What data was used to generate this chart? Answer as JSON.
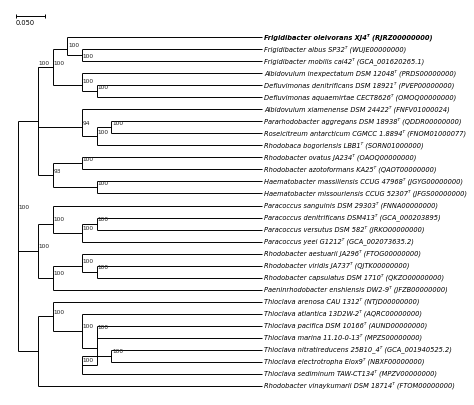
{
  "scale_bar_label": "0.050",
  "taxa": [
    {
      "label": "Frigidibacter oleivorans XJ4ᵀ (RJRZ00000000)",
      "bold": true
    },
    {
      "label": "Frigidibacter albus SP32ᵀ (WUJE00000000)",
      "bold": false
    },
    {
      "label": "Frigidibacter mobilis cai42ᵀ (GCA_001620265.1)",
      "bold": false
    },
    {
      "label": "Albidovulum inexpectatum DSM 12048ᵀ (PRDS00000000)",
      "bold": false
    },
    {
      "label": "Defluvimonas denitrificans DSM 18921ᵀ (PVEP00000000)",
      "bold": false
    },
    {
      "label": "Defluvimonas aquaemirtae CECT8626ᵀ (OMOQ00000000)",
      "bold": false
    },
    {
      "label": "Albidovulum xiamenense DSM 24422ᵀ (FNFV01000024)",
      "bold": false
    },
    {
      "label": "Pararhodobacter aggregans DSM 18938ᵀ (QDDR00000000)",
      "bold": false
    },
    {
      "label": "Roseicitreum antarcticum CGMCC 1.8894ᵀ (FNOM01000077)",
      "bold": false
    },
    {
      "label": "Rhodobaca bogoriensis LBB1ᵀ (SORN01000000)",
      "bold": false
    },
    {
      "label": "Rhodobacter ovatus JA234ᵀ (OAOQ00000000)",
      "bold": false
    },
    {
      "label": "Rhodobacter azotoformans KA25ᵀ (QAOT00000000)",
      "bold": false
    },
    {
      "label": "Haematobacter massiliensis CCUG 47968ᵀ (JGYG00000000)",
      "bold": false
    },
    {
      "label": "Haematobacter missouriensis CCUG 52307ᵀ (JFGS00000000)",
      "bold": false
    },
    {
      "label": "Paracoccus sanguinis DSM 29303ᵀ (FNNA00000000)",
      "bold": false
    },
    {
      "label": "Paracoccus denitrificans DSM413ᵀ (GCA_000203895)",
      "bold": false
    },
    {
      "label": "Paracoccus versutus DSM 582ᵀ (JRKO00000000)",
      "bold": false
    },
    {
      "label": "Paracoccus yeei G1212ᵀ (GCA_002073635.2)",
      "bold": false
    },
    {
      "label": "Rhodobacter aestuarii JA296ᵀ (FTOG00000000)",
      "bold": false
    },
    {
      "label": "Rhodobacter viridis JA737ᵀ (QJTK00000000)",
      "bold": false
    },
    {
      "label": "Rhodobacter capsulatus DSM 1710ᵀ (QKZO00000000)",
      "bold": false
    },
    {
      "label": "Paeninrhodobacter enshiensis DW2-9ᵀ (JFZB00000000)",
      "bold": false
    },
    {
      "label": "Thioclava arenosa CAU 1312ᵀ (NTJD00000000)",
      "bold": false
    },
    {
      "label": "Thioclava atlantica 13D2W-2ᵀ (AQRC00000000)",
      "bold": false
    },
    {
      "label": "Thioclava pacifica DSM 10166ᵀ (AUND00000000)",
      "bold": false
    },
    {
      "label": "Thioclava marina 11.10-0-13ᵀ (MPZS00000000)",
      "bold": false
    },
    {
      "label": "Thioclava nitratireducens 25B10_4ᵀ (GCA_001940525.2)",
      "bold": false
    },
    {
      "label": "Thioclava electrotropha Elox9ᵀ (NBXF00000000)",
      "bold": false
    },
    {
      "label": "Thioclava sediminum TAW-CT134ᵀ (MPZV00000000)",
      "bold": false
    },
    {
      "label": "Rhodobacter vinaykumarii DSM 18714ᵀ (FTOM00000000)",
      "bold": false
    }
  ],
  "background_color": "#ffffff",
  "line_color": "#000000",
  "font_size": 4.8,
  "bootstrap_font_size": 4.2,
  "lw": 0.7
}
